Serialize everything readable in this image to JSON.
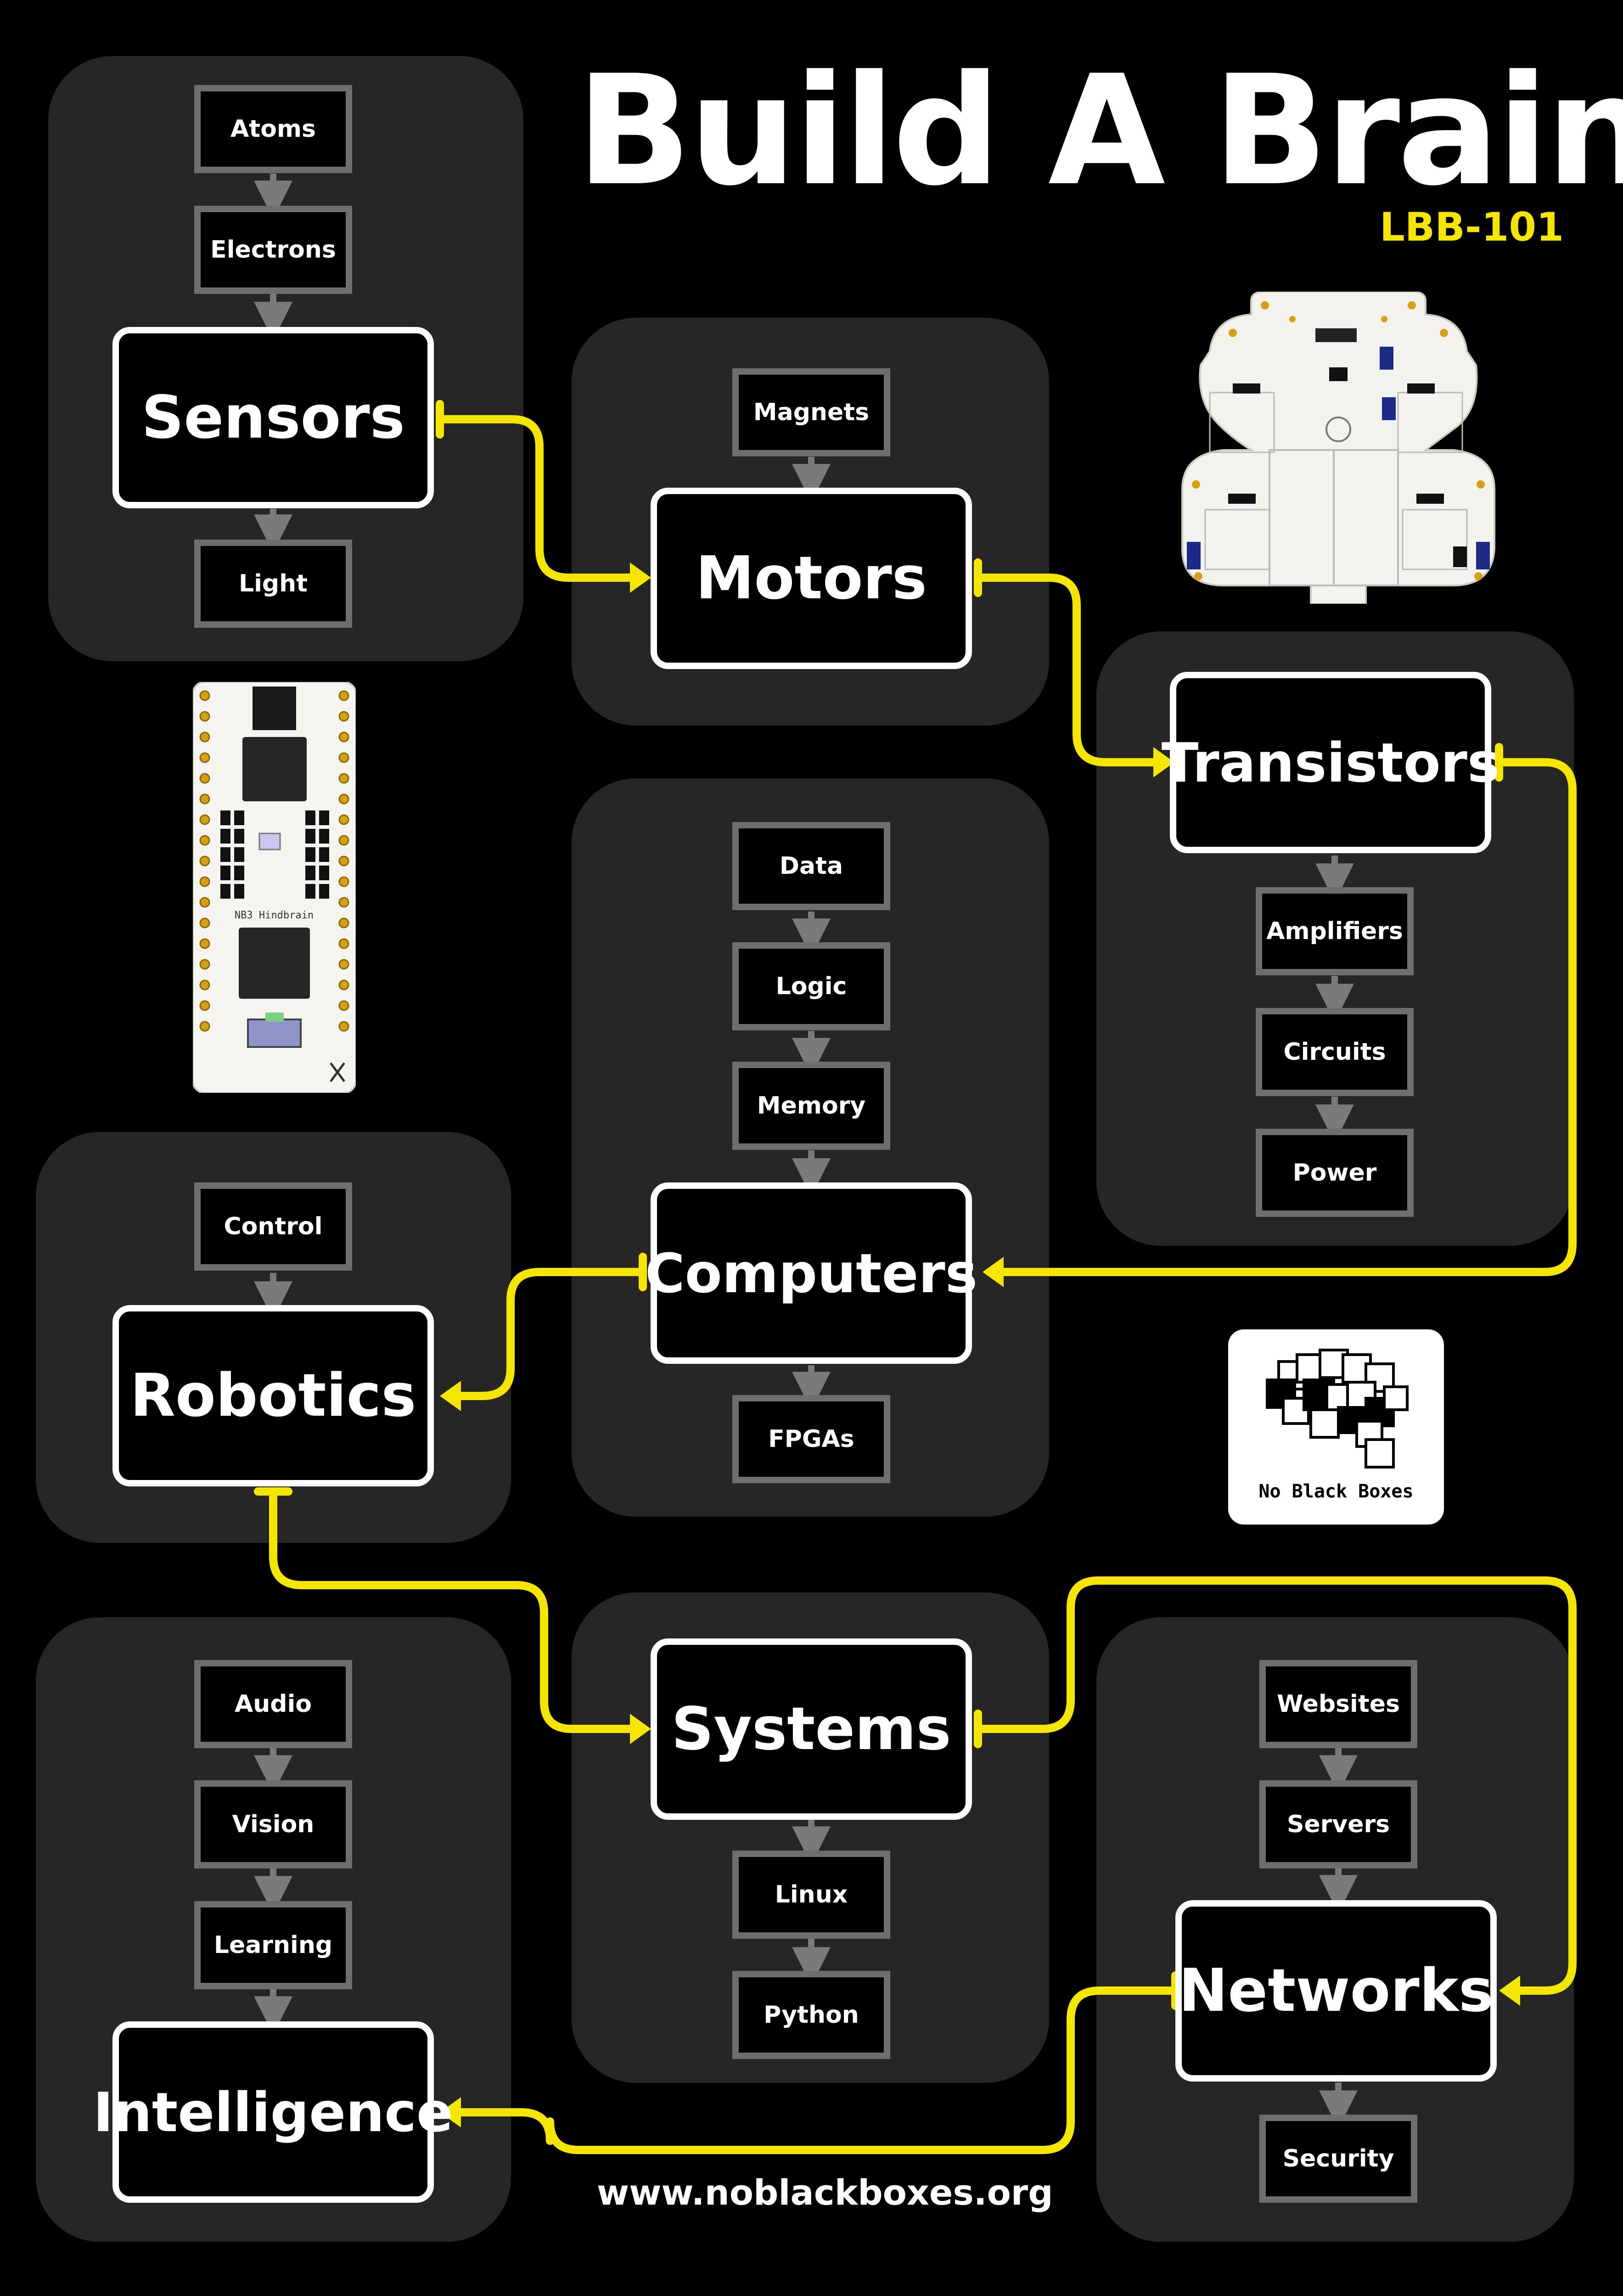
{
  "header": {
    "title": "Build A Brain",
    "subtitle": "LBB-101"
  },
  "footer": {
    "website": "www.noblackboxes.org"
  },
  "logo": {
    "text": "No Black Boxes",
    "icon": "brain-squares-icon"
  },
  "images": {
    "robot_board": "robot-board-image",
    "microcontroller": "hindbrain-board-image",
    "microcontroller_label": "NB3 Hindbrain"
  },
  "colors": {
    "background": "#000000",
    "panel": "#262626",
    "connector": "#f5e600",
    "main_border": "#ffffff",
    "sub_border": "#6e6e6e",
    "sub_arrow": "#7a7a7a"
  },
  "modules": {
    "sensors": {
      "title": "Sensors",
      "before": [
        "Atoms",
        "Electrons"
      ],
      "after": [
        "Light"
      ]
    },
    "motors": {
      "title": "Motors",
      "before": [
        "Magnets"
      ],
      "after": []
    },
    "transistors": {
      "title": "Transistors",
      "before": [],
      "after": [
        "Amplifiers",
        "Circuits",
        "Power"
      ]
    },
    "computers": {
      "title": "Computers",
      "before": [
        "Data",
        "Logic",
        "Memory"
      ],
      "after": [
        "FPGAs"
      ]
    },
    "robotics": {
      "title": "Robotics",
      "before": [
        "Control"
      ],
      "after": []
    },
    "systems": {
      "title": "Systems",
      "before": [],
      "after": [
        "Linux",
        "Python"
      ]
    },
    "networks": {
      "title": "Networks",
      "before": [
        "Websites",
        "Servers"
      ],
      "after": [
        "Security"
      ]
    },
    "intelligence": {
      "title": "Intelligence",
      "before": [
        "Audio",
        "Vision",
        "Learning"
      ],
      "after": []
    }
  },
  "connections": [
    {
      "from": "Sensors",
      "to": "Motors"
    },
    {
      "from": "Motors",
      "to": "Transistors"
    },
    {
      "from": "Transistors",
      "to": "Computers"
    },
    {
      "from": "Computers",
      "to": "Robotics"
    },
    {
      "from": "Robotics",
      "to": "Systems"
    },
    {
      "from": "Systems",
      "to": "Networks"
    },
    {
      "from": "Networks",
      "to": "Intelligence"
    }
  ]
}
